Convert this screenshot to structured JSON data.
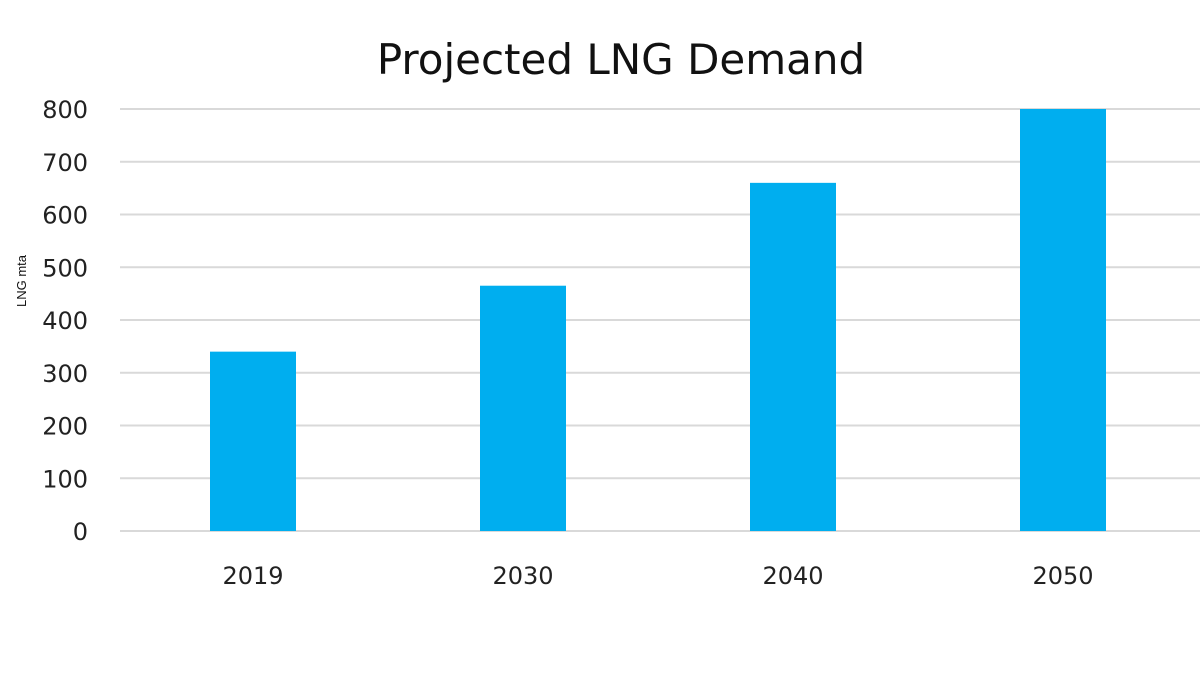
{
  "chart_data": {
    "type": "bar",
    "title": "Projected LNG Demand",
    "xlabel": "",
    "ylabel": "LNG mta",
    "categories": [
      "2019",
      "2030",
      "2040",
      "2050"
    ],
    "values": [
      340,
      465,
      660,
      800
    ],
    "ylim": [
      0,
      800
    ],
    "yticks": [
      0,
      100,
      200,
      300,
      400,
      500,
      600,
      700,
      800
    ],
    "grid": true,
    "legend": "none",
    "bar_color": "#00AEEF",
    "grid_color": "#D9D9D9"
  }
}
